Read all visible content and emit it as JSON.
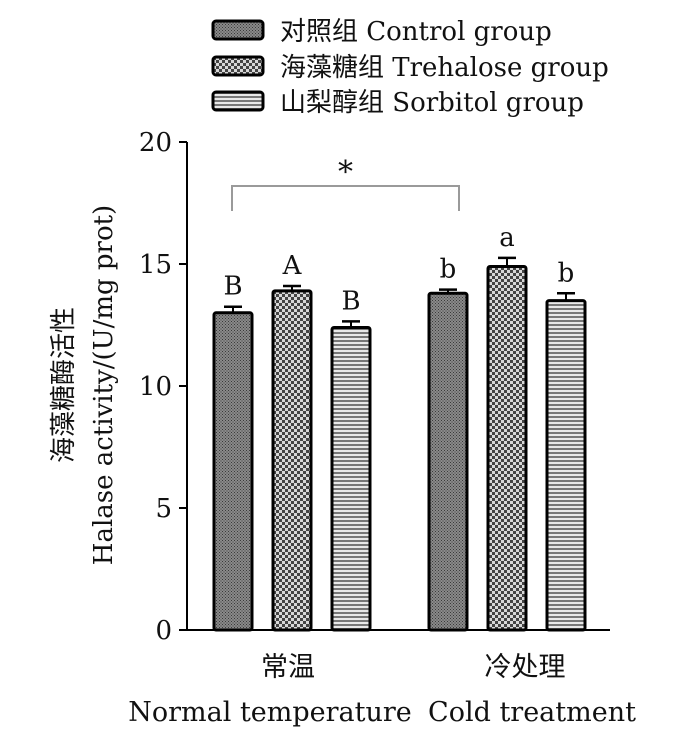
{
  "chart_data": {
    "type": "bar",
    "categories": [
      {
        "cn": "常温",
        "en": "Normal temperature"
      },
      {
        "cn": "冷处理",
        "en": "Cold treatment"
      }
    ],
    "series": [
      {
        "name": "对照组 Control group",
        "values": [
          13.0,
          13.8
        ],
        "errors": [
          0.25,
          0.15
        ],
        "letters": [
          "B",
          "b"
        ],
        "pattern": "dense"
      },
      {
        "name": "海藻糖组 Trehalose group",
        "values": [
          13.9,
          14.9
        ],
        "errors": [
          0.2,
          0.35
        ],
        "letters": [
          "A",
          "a"
        ],
        "pattern": "check"
      },
      {
        "name": "山梨醇组 Sorbitol group",
        "values": [
          12.4,
          13.5
        ],
        "errors": [
          0.25,
          0.3
        ],
        "letters": [
          "B",
          "b"
        ],
        "pattern": "hstripe"
      }
    ],
    "ylabel_cn": "海藻糖酶活性",
    "ylabel_en": "Halase activity/(U/mg prot)",
    "ylim": [
      0,
      20
    ],
    "yticks": [
      0,
      5,
      10,
      15,
      20
    ],
    "significance": {
      "label": "*"
    },
    "grid": false,
    "legend_position": "top-center"
  }
}
